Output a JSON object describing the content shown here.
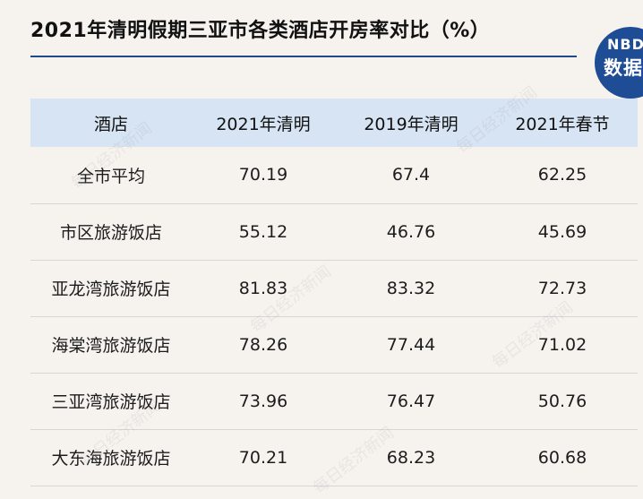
{
  "title": "2021年清明假期三亚市各类酒店开房率对比（%）",
  "logo": {
    "top_text": "NBD",
    "bottom_text": "数据"
  },
  "table": {
    "headers": [
      "酒店",
      "2021年清明",
      "2019年清明",
      "2021年春节"
    ],
    "rows": [
      [
        "全市平均",
        "70.19",
        "67.4",
        "62.25"
      ],
      [
        "市区旅游饭店",
        "55.12",
        "46.76",
        "45.69"
      ],
      [
        "亚龙湾旅游饭店",
        "81.83",
        "83.32",
        "72.73"
      ],
      [
        "海棠湾旅游饭店",
        "78.26",
        "77.44",
        "71.02"
      ],
      [
        "三亚湾旅游饭店",
        "73.96",
        "76.47",
        "50.76"
      ],
      [
        "大东海旅游饭店",
        "70.21",
        "68.23",
        "60.68"
      ]
    ]
  },
  "watermark": "每日经济新闻",
  "colors": {
    "background": "#f6f3ef",
    "header_fill": "#d7e4f3",
    "accent": "#1f4a8c",
    "logo": "#1e4d96"
  }
}
